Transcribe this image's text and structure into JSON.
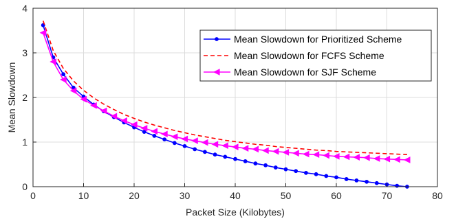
{
  "chart_data": {
    "type": "line",
    "xlabel": "Packet Size (Kilobytes)",
    "ylabel": "Mean Slowdown",
    "xlim": [
      0,
      80
    ],
    "ylim": [
      0,
      4
    ],
    "xticks": [
      0,
      10,
      20,
      30,
      40,
      50,
      60,
      70,
      80
    ],
    "yticks": [
      0,
      1,
      2,
      3,
      4
    ],
    "grid": true,
    "legend_position": "top-right",
    "series": [
      {
        "name": "Mean Slowdown for Prioritized Scheme",
        "color": "#0000ff",
        "line_style": "solid",
        "marker": "dot",
        "x": [
          2,
          4,
          6,
          8,
          10,
          12,
          14,
          16,
          18,
          20,
          22,
          24,
          26,
          28,
          30,
          32,
          34,
          36,
          38,
          40,
          42,
          44,
          46,
          48,
          50,
          52,
          54,
          56,
          58,
          60,
          62,
          64,
          66,
          68,
          70,
          72,
          74
        ],
        "values": [
          3.62,
          2.9,
          2.52,
          2.22,
          2.02,
          1.84,
          1.69,
          1.56,
          1.44,
          1.33,
          1.23,
          1.14,
          1.06,
          0.98,
          0.91,
          0.84,
          0.78,
          0.72,
          0.67,
          0.62,
          0.57,
          0.52,
          0.48,
          0.43,
          0.39,
          0.35,
          0.31,
          0.28,
          0.24,
          0.21,
          0.17,
          0.14,
          0.11,
          0.08,
          0.05,
          0.02,
          0.0
        ]
      },
      {
        "name": "Mean Slowdown for FCFS Scheme",
        "color": "#ff0000",
        "line_style": "dashed",
        "marker": "none",
        "x": [
          2,
          4,
          6,
          8,
          10,
          12,
          14,
          16,
          18,
          20,
          22,
          24,
          26,
          28,
          30,
          32,
          34,
          36,
          38,
          40,
          42,
          44,
          46,
          48,
          50,
          52,
          54,
          56,
          58,
          60,
          62,
          64,
          66,
          68,
          70,
          72,
          74
        ],
        "values": [
          3.72,
          3.05,
          2.65,
          2.37,
          2.16,
          1.99,
          1.85,
          1.73,
          1.62,
          1.53,
          1.45,
          1.38,
          1.32,
          1.26,
          1.21,
          1.16,
          1.12,
          1.08,
          1.04,
          1.01,
          0.98,
          0.95,
          0.93,
          0.9,
          0.88,
          0.86,
          0.84,
          0.82,
          0.81,
          0.79,
          0.78,
          0.77,
          0.76,
          0.75,
          0.74,
          0.73,
          0.72
        ]
      },
      {
        "name": "Mean Slowdown for SJF Scheme",
        "color": "#ff00ff",
        "line_style": "solid",
        "marker": "triangle-left",
        "x": [
          2,
          4,
          6,
          8,
          10,
          12,
          14,
          16,
          18,
          20,
          22,
          24,
          26,
          28,
          30,
          32,
          34,
          36,
          38,
          40,
          42,
          44,
          46,
          48,
          50,
          52,
          54,
          56,
          58,
          60,
          62,
          64,
          66,
          68,
          70,
          72,
          74
        ],
        "values": [
          3.45,
          2.8,
          2.4,
          2.15,
          1.96,
          1.82,
          1.7,
          1.58,
          1.48,
          1.39,
          1.31,
          1.24,
          1.18,
          1.12,
          1.07,
          1.03,
          0.99,
          0.95,
          0.92,
          0.89,
          0.86,
          0.84,
          0.81,
          0.79,
          0.77,
          0.75,
          0.73,
          0.72,
          0.7,
          0.68,
          0.67,
          0.66,
          0.65,
          0.63,
          0.62,
          0.61,
          0.6
        ]
      }
    ]
  }
}
